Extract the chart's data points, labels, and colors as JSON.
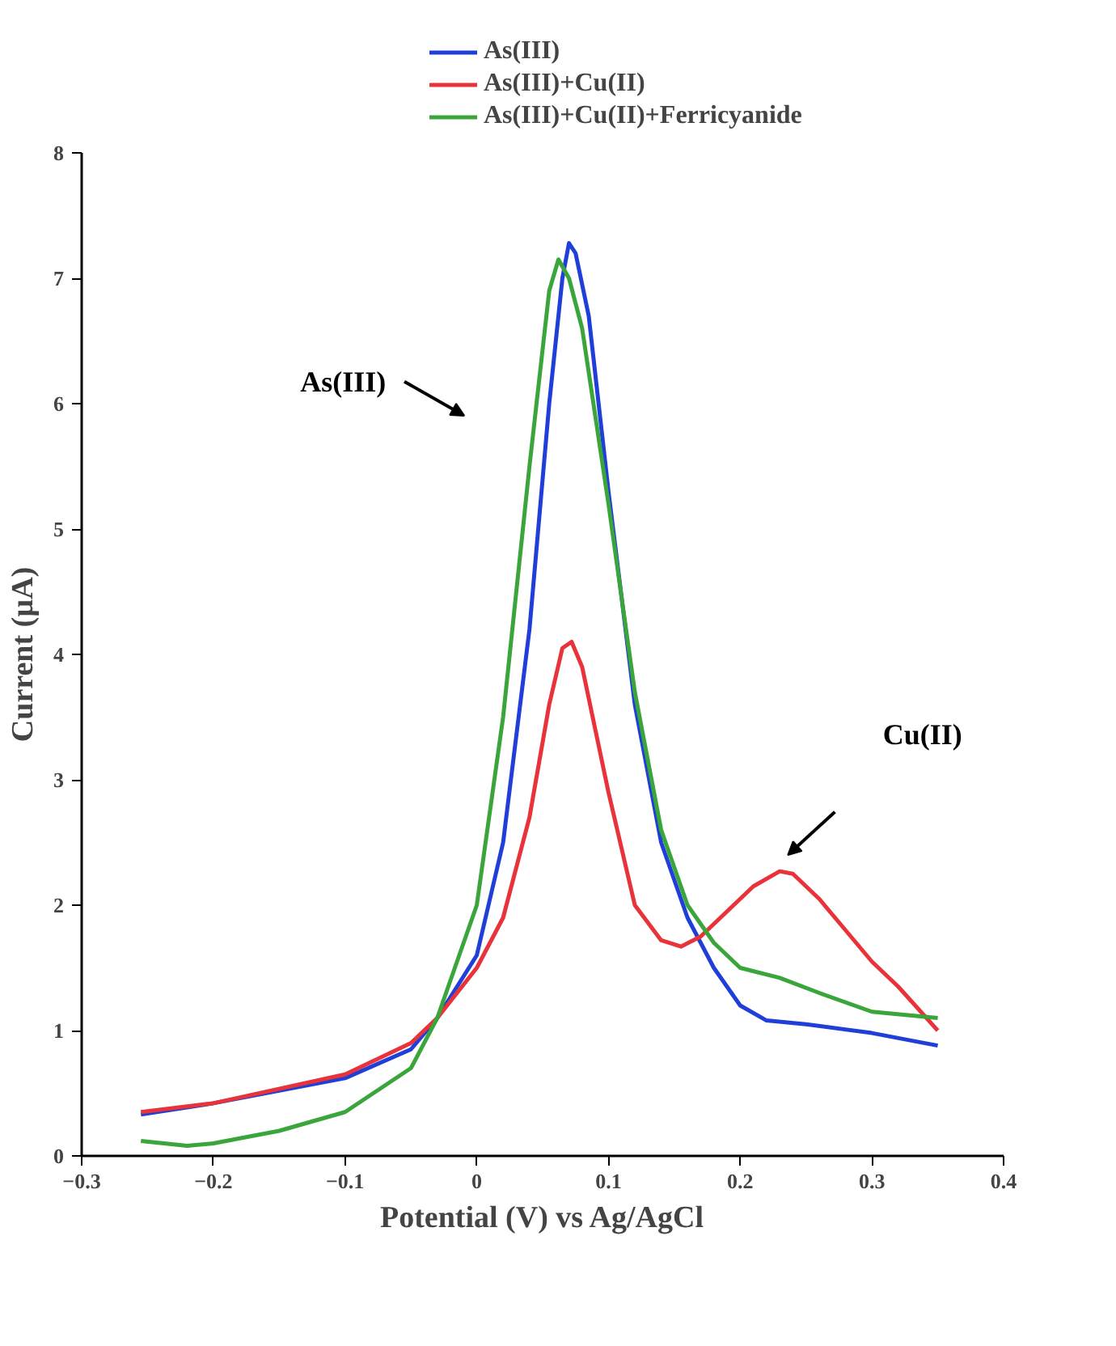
{
  "chart_data": {
    "type": "line",
    "xlabel": "Potential (V) vs Ag/AgCl",
    "ylabel": "Current (µA)",
    "xlim": [
      -0.3,
      0.4
    ],
    "xticks": [
      -0.3,
      -0.2,
      -0.1,
      0,
      0.1,
      0.2,
      0.3,
      0.4
    ],
    "ylim": [
      0,
      8
    ],
    "yticks": [
      0,
      1,
      2,
      3,
      4,
      5,
      6,
      7,
      8
    ],
    "grid": false,
    "legend": "top",
    "marker": "none",
    "line_style": "solid",
    "series": [
      {
        "name": "As(III)",
        "color": "#1f3fd8",
        "x": [
          -0.255,
          -0.2,
          -0.1,
          -0.05,
          -0.03,
          0,
          0.02,
          0.04,
          0.055,
          0.065,
          0.07,
          0.075,
          0.085,
          0.1,
          0.12,
          0.14,
          0.16,
          0.18,
          0.2,
          0.22,
          0.25,
          0.3,
          0.35
        ],
        "values": [
          0.33,
          0.42,
          0.62,
          0.85,
          1.1,
          1.6,
          2.5,
          4.2,
          6.0,
          7.0,
          7.28,
          7.2,
          6.7,
          5.3,
          3.6,
          2.5,
          1.9,
          1.5,
          1.2,
          1.08,
          1.05,
          0.98,
          0.88
        ]
      },
      {
        "name": "As(III)+Cu(II)",
        "color": "#e8333a",
        "x": [
          -0.255,
          -0.2,
          -0.1,
          -0.05,
          -0.03,
          0,
          0.02,
          0.04,
          0.055,
          0.065,
          0.072,
          0.08,
          0.1,
          0.12,
          0.14,
          0.155,
          0.17,
          0.19,
          0.21,
          0.23,
          0.24,
          0.26,
          0.28,
          0.3,
          0.32,
          0.35
        ],
        "values": [
          0.35,
          0.42,
          0.65,
          0.9,
          1.1,
          1.5,
          1.9,
          2.7,
          3.6,
          4.05,
          4.1,
          3.9,
          2.9,
          2.0,
          1.72,
          1.67,
          1.75,
          1.95,
          2.15,
          2.27,
          2.25,
          2.05,
          1.8,
          1.55,
          1.35,
          1.0
        ]
      },
      {
        "name": "As(III)+Cu(II)+Ferricyanide",
        "color": "#3aa53a",
        "x": [
          -0.255,
          -0.22,
          -0.2,
          -0.15,
          -0.1,
          -0.05,
          -0.03,
          0,
          0.02,
          0.04,
          0.055,
          0.062,
          0.07,
          0.08,
          0.1,
          0.12,
          0.14,
          0.16,
          0.18,
          0.2,
          0.23,
          0.26,
          0.3,
          0.35
        ],
        "values": [
          0.12,
          0.08,
          0.1,
          0.2,
          0.35,
          0.7,
          1.1,
          2.0,
          3.5,
          5.5,
          6.9,
          7.15,
          7.0,
          6.6,
          5.2,
          3.7,
          2.6,
          2.0,
          1.7,
          1.5,
          1.42,
          1.3,
          1.15,
          1.1
        ]
      }
    ],
    "annotations": [
      "As(III)",
      "Cu(II)"
    ]
  }
}
